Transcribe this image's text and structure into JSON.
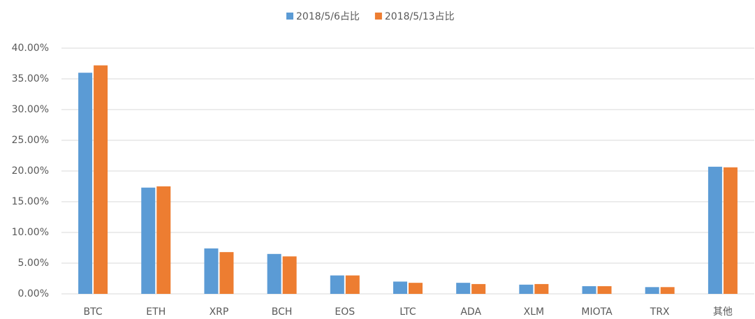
{
  "chart_data": {
    "type": "bar",
    "categories": [
      "BTC",
      "ETH",
      "XRP",
      "BCH",
      "EOS",
      "LTC",
      "ADA",
      "XLM",
      "MIOTA",
      "TRX",
      "其他"
    ],
    "series": [
      {
        "name": "2018/5/6占比",
        "color": "#5b9bd5",
        "values": [
          36.0,
          17.3,
          7.4,
          6.5,
          3.0,
          2.0,
          1.8,
          1.5,
          1.25,
          1.1,
          20.7
        ]
      },
      {
        "name": "2018/5/13占比",
        "color": "#ed7d31",
        "values": [
          37.2,
          17.5,
          6.8,
          6.1,
          3.0,
          1.8,
          1.6,
          1.6,
          1.25,
          1.1,
          20.6
        ]
      }
    ],
    "ylim": [
      0,
      40
    ],
    "yticks": [
      {
        "value": 0,
        "label": "0.00%"
      },
      {
        "value": 5,
        "label": "5.00%"
      },
      {
        "value": 10,
        "label": "10.00%"
      },
      {
        "value": 15,
        "label": "15.00%"
      },
      {
        "value": 20,
        "label": "20.00%"
      },
      {
        "value": 25,
        "label": "25.00%"
      },
      {
        "value": 30,
        "label": "30.00%"
      },
      {
        "value": 35,
        "label": "35.00%"
      },
      {
        "value": 40,
        "label": "40.00%"
      }
    ],
    "grid": true,
    "legend": "top"
  }
}
